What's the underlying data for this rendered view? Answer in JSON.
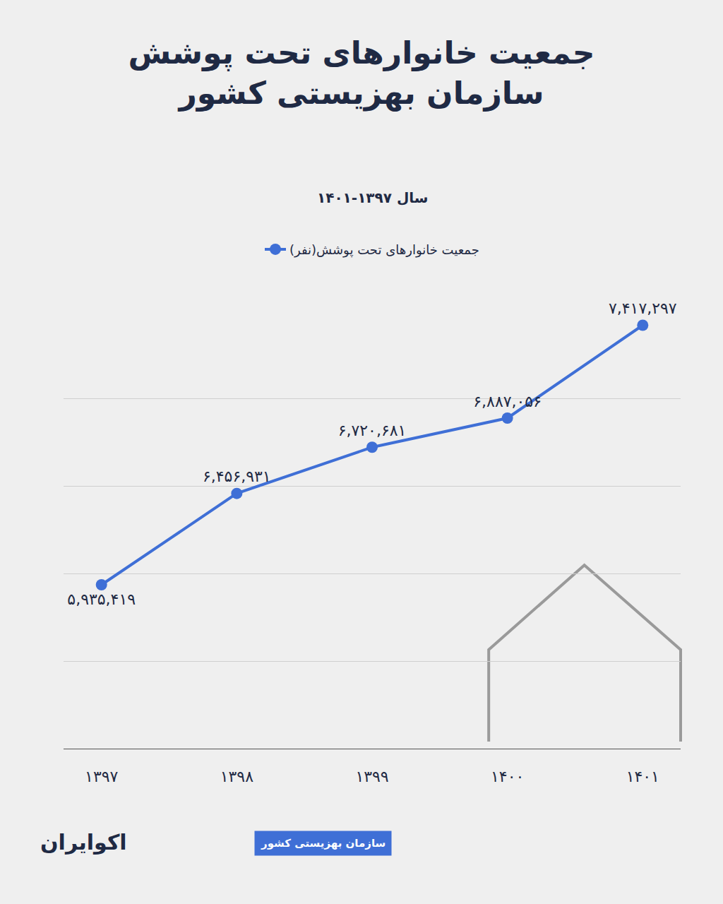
{
  "chart_data": {
    "type": "line",
    "title": [
      "جمعیت خانوارهای تحت پوشش",
      "سازمان بهزیستی کشور"
    ],
    "subtitle": "سال ۱۳۹۷-۱۴۰۱",
    "categories": [
      "۱۳۹۷",
      "۱۳۹۸",
      "۱۳۹۹",
      "۱۴۰۰",
      "۱۴۰۱"
    ],
    "series": [
      {
        "name": "جمعیت خانوارهای تحت پوشش(نفر)",
        "color": "#3f6fd6",
        "marker": "circle",
        "values": [
          5935419,
          6456931,
          6720681,
          6887056,
          7417297
        ],
        "value_labels": [
          "۵,۹۳۵,۴۱۹",
          "۶,۴۵۶,۹۳۱",
          "۶,۷۲۰,۶۸۱",
          "۶,۸۸۷,۰۵۶",
          "۷,۴۱۷,۲۹۷"
        ]
      }
    ],
    "ylim": [
      5000000,
      7500000
    ],
    "yticks": [
      5000000,
      5500000,
      6000000,
      6500000,
      7000000,
      7500000
    ],
    "grid": true,
    "tick_labels": "x",
    "data_labels": true,
    "legend": "top",
    "source": "سازمان بهزیستی کشور",
    "logo": "اکوایران"
  }
}
